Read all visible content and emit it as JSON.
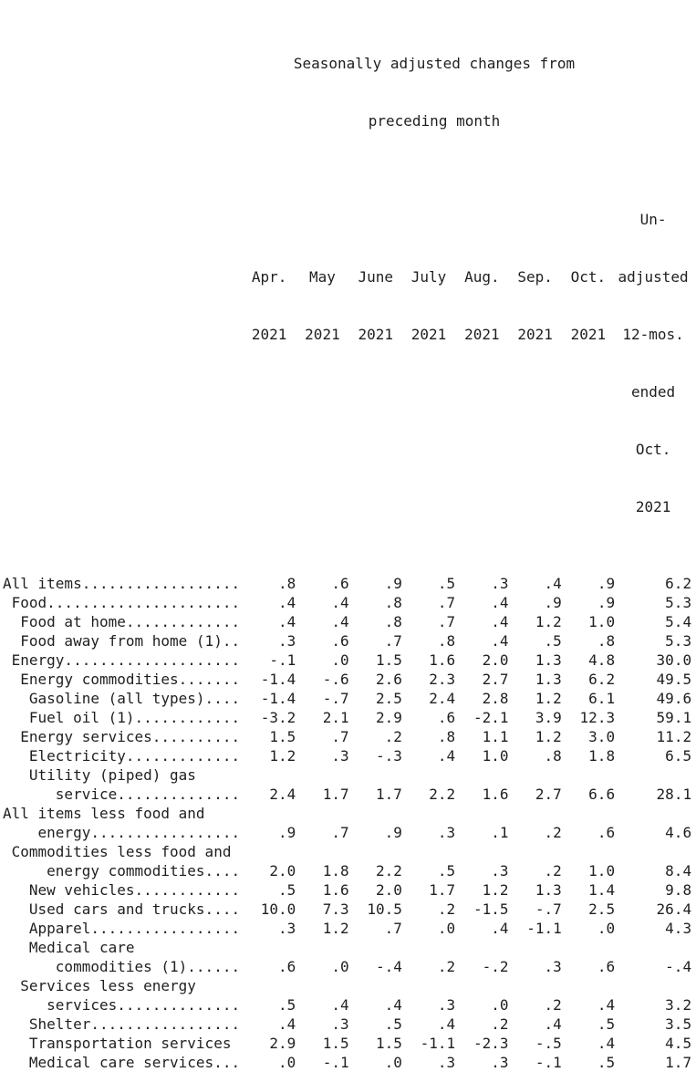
{
  "colors": {
    "text": "#1f1f1f",
    "background": "#ffffff"
  },
  "title": {
    "line1": "Seasonally adjusted changes from",
    "line2": "preceding month"
  },
  "header": {
    "months": [
      {
        "name": "Apr.",
        "year": "2021"
      },
      {
        "name": "May",
        "year": "2021"
      },
      {
        "name": "June",
        "year": "2021"
      },
      {
        "name": "July",
        "year": "2021"
      },
      {
        "name": "Aug.",
        "year": "2021"
      },
      {
        "name": "Sep.",
        "year": "2021"
      },
      {
        "name": "Oct.",
        "year": "2021"
      }
    ],
    "unadjusted_lines": [
      "Un-",
      "adjusted",
      "12-mos.",
      "ended",
      "Oct.",
      "2021"
    ]
  },
  "table": {
    "rows": [
      {
        "label": "All items..................",
        "values": [
          ".8",
          ".6",
          ".9",
          ".5",
          ".3",
          ".4",
          ".9",
          "6.2"
        ]
      },
      {
        "label": " Food......................",
        "values": [
          ".4",
          ".4",
          ".8",
          ".7",
          ".4",
          ".9",
          ".9",
          "5.3"
        ]
      },
      {
        "label": "  Food at home.............",
        "values": [
          ".4",
          ".4",
          ".8",
          ".7",
          ".4",
          "1.2",
          "1.0",
          "5.4"
        ]
      },
      {
        "label": "  Food away from home (1)..",
        "values": [
          ".3",
          ".6",
          ".7",
          ".8",
          ".4",
          ".5",
          ".8",
          "5.3"
        ]
      },
      {
        "label": " Energy....................",
        "values": [
          "-.1",
          ".0",
          "1.5",
          "1.6",
          "2.0",
          "1.3",
          "4.8",
          "30.0"
        ]
      },
      {
        "label": "  Energy commodities.......",
        "values": [
          "-1.4",
          "-.6",
          "2.6",
          "2.3",
          "2.7",
          "1.3",
          "6.2",
          "49.5"
        ]
      },
      {
        "label": "   Gasoline (all types)....",
        "values": [
          "-1.4",
          "-.7",
          "2.5",
          "2.4",
          "2.8",
          "1.2",
          "6.1",
          "49.6"
        ]
      },
      {
        "label": "   Fuel oil (1)............",
        "values": [
          "-3.2",
          "2.1",
          "2.9",
          ".6",
          "-2.1",
          "3.9",
          "12.3",
          "59.1"
        ]
      },
      {
        "label": "  Energy services..........",
        "values": [
          "1.5",
          ".7",
          ".2",
          ".8",
          "1.1",
          "1.2",
          "3.0",
          "11.2"
        ]
      },
      {
        "label": "   Electricity.............",
        "values": [
          "1.2",
          ".3",
          "-.3",
          ".4",
          "1.0",
          ".8",
          "1.8",
          "6.5"
        ]
      },
      {
        "label": "   Utility (piped) gas"
      },
      {
        "label": "      service..............",
        "values": [
          "2.4",
          "1.7",
          "1.7",
          "2.2",
          "1.6",
          "2.7",
          "6.6",
          "28.1"
        ]
      },
      {
        "label": "All items less food and"
      },
      {
        "label": "    energy.................",
        "values": [
          ".9",
          ".7",
          ".9",
          ".3",
          ".1",
          ".2",
          ".6",
          "4.6"
        ]
      },
      {
        "label": " Commodities less food and"
      },
      {
        "label": "     energy commodities....",
        "values": [
          "2.0",
          "1.8",
          "2.2",
          ".5",
          ".3",
          ".2",
          "1.0",
          "8.4"
        ]
      },
      {
        "label": "   New vehicles............",
        "values": [
          ".5",
          "1.6",
          "2.0",
          "1.7",
          "1.2",
          "1.3",
          "1.4",
          "9.8"
        ]
      },
      {
        "label": "   Used cars and trucks....",
        "values": [
          "10.0",
          "7.3",
          "10.5",
          ".2",
          "-1.5",
          "-.7",
          "2.5",
          "26.4"
        ]
      },
      {
        "label": "   Apparel.................",
        "values": [
          ".3",
          "1.2",
          ".7",
          ".0",
          ".4",
          "-1.1",
          ".0",
          "4.3"
        ]
      },
      {
        "label": "   Medical care"
      },
      {
        "label": "      commodities (1)......",
        "values": [
          ".6",
          ".0",
          "-.4",
          ".2",
          "-.2",
          ".3",
          ".6",
          "-.4"
        ]
      },
      {
        "label": "  Services less energy"
      },
      {
        "label": "     services..............",
        "values": [
          ".5",
          ".4",
          ".4",
          ".3",
          ".0",
          ".2",
          ".4",
          "3.2"
        ]
      },
      {
        "label": "   Shelter.................",
        "values": [
          ".4",
          ".3",
          ".5",
          ".4",
          ".2",
          ".4",
          ".5",
          "3.5"
        ]
      },
      {
        "label": "   Transportation services",
        "values": [
          "2.9",
          "1.5",
          "1.5",
          "-1.1",
          "-2.3",
          "-.5",
          ".4",
          "4.5"
        ]
      },
      {
        "label": "   Medical care services...",
        "values": [
          ".0",
          "-.1",
          ".0",
          ".3",
          ".3",
          "-.1",
          ".5",
          "1.7"
        ]
      }
    ]
  }
}
